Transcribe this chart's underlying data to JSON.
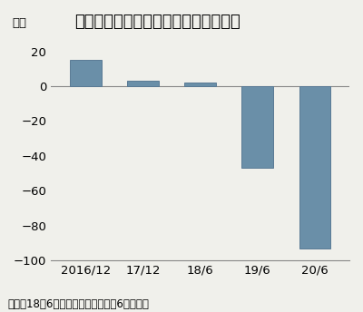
{
  "title": "新型コロナが響き、大幅な最終赤字に",
  "ylabel": "億円",
  "categories": [
    "2016/12",
    "17/12",
    "18/6",
    "19/6",
    "20/6"
  ],
  "values": [
    15,
    3,
    2,
    -47,
    -93
  ],
  "bar_color": "#6a8fa8",
  "bar_edge_color": "#5a7a95",
  "ylim": [
    -100,
    30
  ],
  "yticks": [
    -100,
    -80,
    -60,
    -40,
    -20,
    0,
    20
  ],
  "footnote": "（注）18年6月期は決算期の変更で6カ月決算",
  "background_color": "#f0f0eb",
  "title_fontsize": 13,
  "axis_fontsize": 9.5,
  "footnote_fontsize": 8.5
}
